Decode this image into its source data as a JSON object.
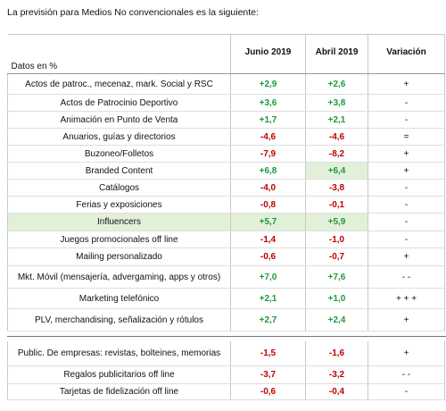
{
  "intro": "La previsión para Medios No convencionales es la siguiente:",
  "table": {
    "label_header": "Datos en %",
    "headers": [
      "Junio 2019",
      "Abril 2019",
      "Variación"
    ],
    "rows": [
      [
        "Actos de patroc., mecenaz, mark. Social y RSC",
        "+2,9",
        "+2,6",
        "+"
      ],
      [
        "Actos de Patrocinio Deportivo",
        "+3,6",
        "+3,8",
        "-"
      ],
      [
        "Animación en Punto de Venta",
        "+1,7",
        "+2,1",
        "-"
      ],
      [
        "Anuarios, guías y directorios",
        "-4,6",
        "-4,6",
        "="
      ],
      [
        "Buzoneo/Folletos",
        "-7,9",
        "-8,2",
        "+"
      ],
      [
        "Branded Content",
        "+6,8",
        "+6,4",
        "+"
      ],
      [
        "Catálogos",
        "-4,0",
        "-3,8",
        "-"
      ],
      [
        "Ferias y exposiciones",
        "-0,8",
        "-0,1",
        "-"
      ],
      [
        "Influencers",
        "+5,7",
        "+5,9",
        "-"
      ],
      [
        "Juegos promocionales off line",
        "-1,4",
        "-1,0",
        "-"
      ],
      [
        "Mailing personalizado",
        "-0,6",
        "-0,7",
        "+"
      ],
      [
        "Mkt. Móvil (mensajería, advergaming, apps y otros)",
        "+7,0",
        "+7,6",
        "- -"
      ],
      [
        "Marketing telefónico",
        "+2,1",
        "+1,0",
        "+ + +"
      ],
      [
        "PLV, merchandising, señalización y rótulos",
        "+2,7",
        "+2,4",
        "+"
      ]
    ]
  },
  "table2": {
    "rows": [
      [
        "Public. De empresas: revistas, bolteines, memorias",
        "-1,5",
        "-1,6",
        "+"
      ],
      [
        "Regalos publicitarios off line",
        "-3,7",
        "-3,2",
        "- -"
      ],
      [
        "Tarjetas de fidelización off line",
        "-0,6",
        "-0,4",
        "-"
      ]
    ]
  }
}
